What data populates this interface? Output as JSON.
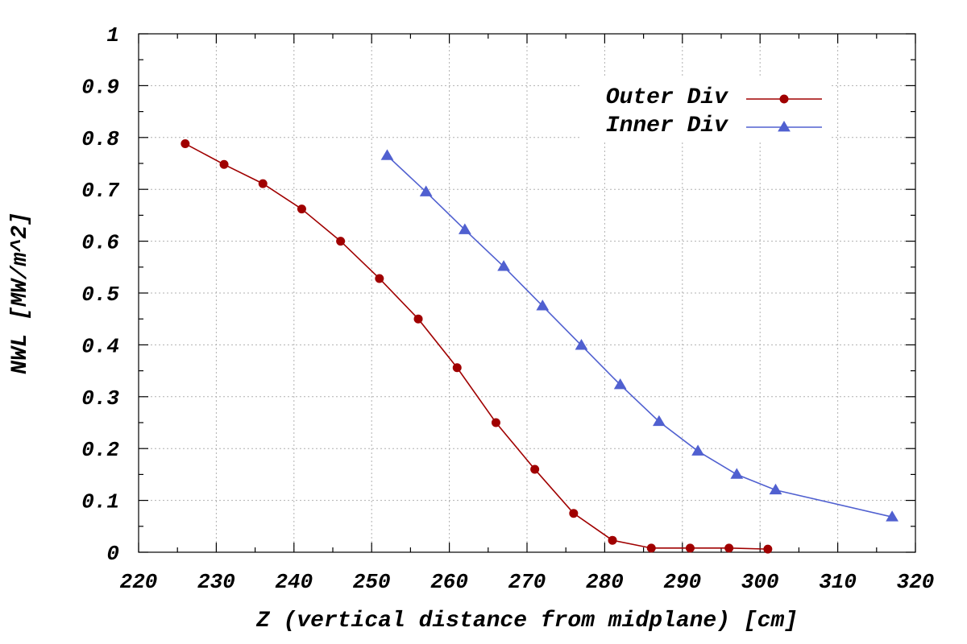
{
  "chart_data": {
    "type": "line",
    "xlabel": "Z (vertical distance from midplane) [cm]",
    "ylabel": "NWL [MW/m^2]",
    "xlim": [
      220,
      320
    ],
    "ylim": [
      0,
      1
    ],
    "xticks": [
      220,
      230,
      240,
      250,
      260,
      270,
      280,
      290,
      300,
      310,
      320
    ],
    "yticks": [
      0,
      0.1,
      0.2,
      0.3,
      0.4,
      0.5,
      0.6,
      0.7,
      0.8,
      0.9,
      1
    ],
    "xtick_labels": [
      "220",
      "230",
      "240",
      "250",
      "260",
      "270",
      "280",
      "290",
      "300",
      "310",
      "320"
    ],
    "ytick_labels": [
      "0",
      "0.1",
      "0.2",
      "0.3",
      "0.4",
      "0.5",
      "0.6",
      "0.7",
      "0.8",
      "0.9",
      "1"
    ],
    "grid": true,
    "legend_position": "top-right",
    "series": [
      {
        "name": "Outer Div",
        "color": "#a00000",
        "marker": "circle",
        "x": [
          226,
          231,
          236,
          241,
          246,
          251,
          256,
          261,
          266,
          271,
          276,
          281,
          286,
          291,
          296,
          301
        ],
        "y": [
          0.788,
          0.748,
          0.711,
          0.662,
          0.6,
          0.528,
          0.45,
          0.356,
          0.25,
          0.16,
          0.075,
          0.023,
          0.008,
          0.008,
          0.008,
          0.006
        ]
      },
      {
        "name": "Inner Div",
        "color": "#5060d0",
        "marker": "triangle",
        "x": [
          252,
          257,
          262,
          267,
          272,
          277,
          282,
          287,
          292,
          297,
          302,
          317
        ],
        "y": [
          0.765,
          0.695,
          0.622,
          0.551,
          0.475,
          0.399,
          0.323,
          0.252,
          0.195,
          0.15,
          0.12,
          0.068
        ]
      }
    ]
  }
}
